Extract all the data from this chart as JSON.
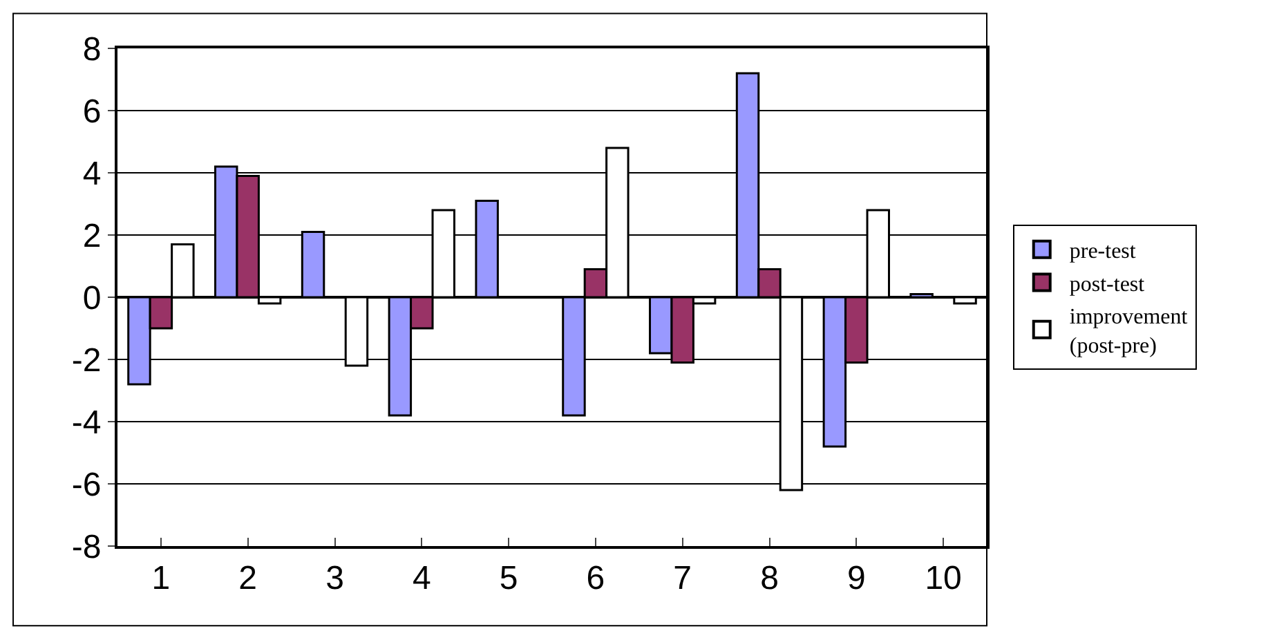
{
  "chart_data": {
    "type": "bar",
    "categories": [
      "1",
      "2",
      "3",
      "4",
      "5",
      "6",
      "7",
      "8",
      "9",
      "10"
    ],
    "series": [
      {
        "name": "pre-test",
        "color": "#9999ff",
        "values": [
          -2.8,
          4.2,
          2.1,
          -3.8,
          3.1,
          -3.8,
          -1.8,
          7.2,
          -4.8,
          0.1
        ]
      },
      {
        "name": "post-test",
        "color": "#993366",
        "values": [
          -1,
          3.9,
          null,
          -1,
          null,
          0.9,
          -2.1,
          0.9,
          -2.1,
          null
        ]
      },
      {
        "name": "improvement\n(post-pre)",
        "color": "#ffffff",
        "values": [
          1.7,
          -0.2,
          -2.2,
          2.8,
          null,
          4.8,
          -0.2,
          -6.2,
          2.8,
          -0.2
        ]
      }
    ],
    "ylim": [
      -8,
      8
    ],
    "yticks": [
      -8,
      -6,
      -4,
      -2,
      0,
      2,
      4,
      6,
      8
    ],
    "grid": "y",
    "legend": "right"
  }
}
